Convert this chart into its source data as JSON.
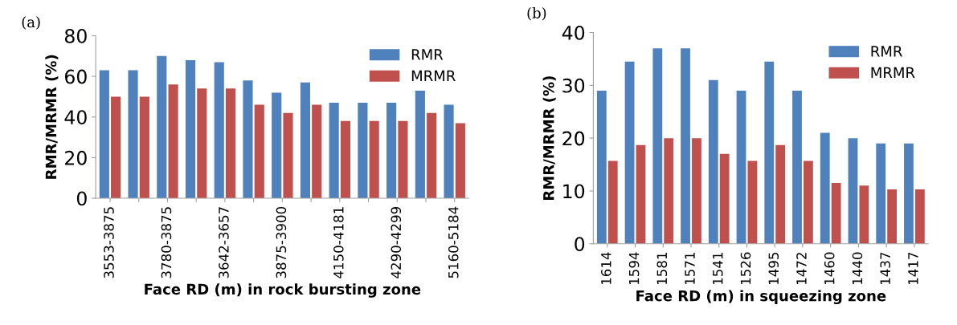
{
  "chart_data": [
    {
      "type": "bar",
      "annotations": [
        "(a)"
      ],
      "xlabel": "Face RD (m) in rock bursting zone",
      "ylabel": "RMR/MRMR (%)",
      "categories": [
        "3553-3875",
        null,
        "3780-3875",
        null,
        "3642-3657",
        null,
        "3875-3900",
        null,
        "4150-4181",
        null,
        "4290-4299",
        null,
        "5160-5184"
      ],
      "series": [
        {
          "name": "RMR",
          "color": "#4f81bd",
          "values": [
            63,
            63,
            70,
            68,
            67,
            58,
            52,
            57,
            47,
            47,
            47,
            53,
            46
          ]
        },
        {
          "name": "MRMR",
          "color": "#c0504d",
          "values": [
            50,
            50,
            56,
            54,
            54,
            46,
            42,
            46,
            38,
            38,
            38,
            42,
            37
          ]
        }
      ],
      "ylim": [
        0,
        80
      ],
      "yticks": [
        0,
        20,
        40,
        60,
        80
      ],
      "legend": "top right"
    },
    {
      "type": "bar",
      "annotations": [
        "(b)"
      ],
      "xlabel": "Face RD (m) in squeezing zone",
      "ylabel": "RMR/MRMR (%)",
      "categories": [
        "1614",
        "1594",
        "1581",
        "1571",
        "1541",
        "1526",
        "1495",
        "1472",
        "1460",
        "1440",
        "1437",
        "1417"
      ],
      "series": [
        {
          "name": "RMR",
          "color": "#4f81bd",
          "values": [
            29,
            34.5,
            37,
            37,
            31,
            29,
            34.5,
            29,
            21,
            20,
            19,
            19
          ]
        },
        {
          "name": "MRMR",
          "color": "#c0504d",
          "values": [
            15.7,
            18.7,
            20,
            20,
            17,
            15.7,
            18.7,
            15.7,
            11.5,
            11,
            10.3,
            10.3
          ]
        }
      ],
      "ylim": [
        0,
        40
      ],
      "yticks": [
        0,
        10,
        20,
        30,
        40
      ],
      "legend": "top right"
    }
  ]
}
